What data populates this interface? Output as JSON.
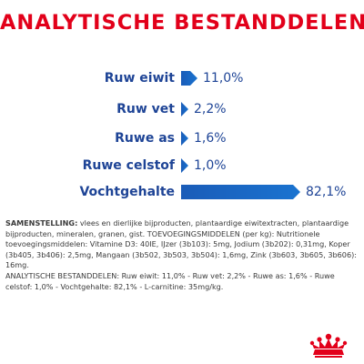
{
  "title": "ANALYTISCHE BESTANDDELEN",
  "rows": [
    {
      "label": "Ruw eiwit",
      "value": "11,0%",
      "percent": 11.0
    },
    {
      "label": "Ruw vet",
      "value": "2,2%",
      "percent": 2.2
    },
    {
      "label": "Ruwe as",
      "value": "1,6%",
      "percent": 1.6
    },
    {
      "label": "Ruwe celstof",
      "value": "1,0%",
      "percent": 1.0
    },
    {
      "label": "Vochtgehalte",
      "value": "82,1%",
      "percent": 82.1
    }
  ],
  "composition": {
    "heading": "SAMENSTELLING:",
    "text": " vlees en dierlijke bijproducten, plantaardige eiwitextracten, plantaardige bijproducten, mineralen, granen, gist. TOEVOEGINGSMIDDELEN (per kg): Nutritionele toevoegingsmiddelen: Vitamine D3: 40IE, IJzer (3b103): 5mg, Jodium (3b202): 0,31mg, Koper (3b405, 3b406): 2,5mg, Mangaan (3b502, 3b503, 3b504): 1,6mg, Zink (3b603, 3b605, 3b606): 16mg.",
    "analysis": "ANALYTISCHE BESTANDDELEN: Ruw eiwit: 11,0% - Ruw vet: 2,2% - Ruwe as: 1,6% - Ruwe celstof: 1,0% - Vochtgehalte: 82,1% - L-carnitine: 35mg/kg."
  },
  "colors": {
    "title": "#e2001a",
    "label": "#1e4496",
    "bar": "#1a6ccb"
  },
  "logo": {
    "icon": "royal-canin-crown-logo"
  }
}
